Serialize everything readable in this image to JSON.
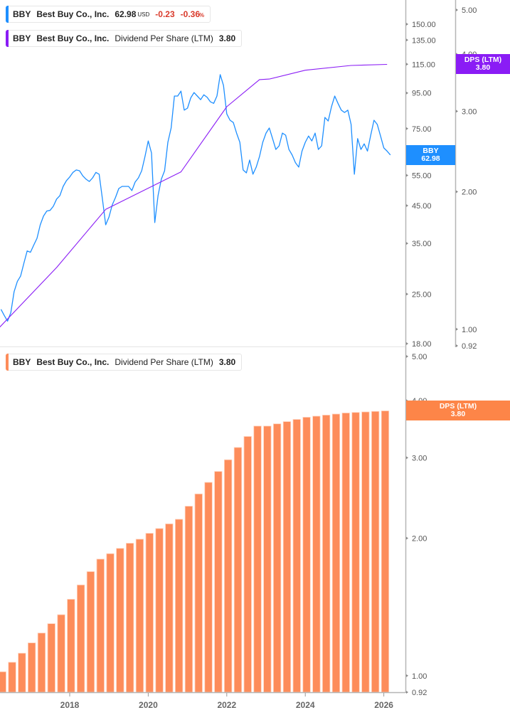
{
  "legends": {
    "price": {
      "ticker": "BBY",
      "company": "Best Buy Co., Inc.",
      "price": "62.98",
      "currency": "USD",
      "change": "-0.23",
      "change_pct": "-0.36",
      "pct_sign": "%",
      "color": "#1e8fff"
    },
    "dps_top": {
      "ticker": "BBY",
      "company": "Best Buy Co., Inc.",
      "metric": "Dividend Per Share (LTM)",
      "value": "3.80",
      "color": "#8a1cf5"
    },
    "dps_bottom": {
      "ticker": "BBY",
      "company": "Best Buy Co., Inc.",
      "metric": "Dividend Per Share (LTM)",
      "value": "3.80",
      "color": "#fd8c5a"
    }
  },
  "badges": {
    "price": {
      "line1": "BBY",
      "line2": "62.98",
      "color": "#1e8fff"
    },
    "dps_top": {
      "line1": "DPS (LTM)",
      "line2": "3.80",
      "color": "#8a1cf5"
    },
    "dps_bottom": {
      "line1": "DPS (LTM)",
      "line2": "3.80",
      "color": "#fd8548"
    }
  },
  "chart_data": [
    {
      "type": "line",
      "panel": "top",
      "scale": "log",
      "price_axis": {
        "ticks": [
          "150.00",
          "135.00",
          "115.00",
          "95.00",
          "75.00",
          "55.00",
          "45.00",
          "35.00",
          "25.00",
          "18.00"
        ],
        "range": [
          18,
          150
        ]
      },
      "dps_axis": {
        "ticks": [
          "5.00",
          "4.00",
          "3.00",
          "2.00",
          "1.00",
          "0.92"
        ],
        "range": [
          0.92,
          5.0
        ]
      },
      "series": [
        {
          "name": "BBY",
          "axis": "price",
          "color": "#1e8fff",
          "x": [
            "2016-04",
            "2016-05",
            "2016-06",
            "2016-07",
            "2016-08",
            "2016-09",
            "2016-10",
            "2016-11",
            "2016-12",
            "2017-01",
            "2017-02",
            "2017-03",
            "2017-04",
            "2017-05",
            "2017-06",
            "2017-07",
            "2017-08",
            "2017-09",
            "2017-10",
            "2017-11",
            "2017-12",
            "2018-01",
            "2018-02",
            "2018-03",
            "2018-04",
            "2018-05",
            "2018-06",
            "2018-07",
            "2018-08",
            "2018-09",
            "2018-10",
            "2018-11",
            "2018-12",
            "2019-01",
            "2019-02",
            "2019-03",
            "2019-04",
            "2019-05",
            "2019-06",
            "2019-07",
            "2019-08",
            "2019-09",
            "2019-10",
            "2019-11",
            "2019-12",
            "2020-01",
            "2020-02",
            "2020-03",
            "2020-04",
            "2020-05",
            "2020-06",
            "2020-07",
            "2020-08",
            "2020-09",
            "2020-10",
            "2020-11",
            "2020-12",
            "2021-01",
            "2021-02",
            "2021-03",
            "2021-04",
            "2021-05",
            "2021-06",
            "2021-07",
            "2021-08",
            "2021-09",
            "2021-10",
            "2021-11",
            "2021-12",
            "2022-01",
            "2022-02",
            "2022-03",
            "2022-04",
            "2022-05",
            "2022-06",
            "2022-07",
            "2022-08",
            "2022-09",
            "2022-10",
            "2022-11",
            "2022-12",
            "2023-01",
            "2023-02",
            "2023-03",
            "2023-04",
            "2023-05",
            "2023-06",
            "2023-07",
            "2023-08",
            "2023-09",
            "2023-10",
            "2023-11",
            "2023-12",
            "2024-01",
            "2024-02",
            "2024-03",
            "2024-04",
            "2024-05",
            "2024-06",
            "2024-07",
            "2024-08",
            "2024-09",
            "2024-10",
            "2024-11",
            "2024-12",
            "2025-01",
            "2025-02",
            "2025-03",
            "2025-04",
            "2025-05",
            "2025-06",
            "2025-07",
            "2025-08",
            "2025-09",
            "2025-10",
            "2025-11",
            "2025-12",
            "2026-01",
            "2026-02",
            "2026-03"
          ],
          "y": [
            22.6,
            21.7,
            20.9,
            22.1,
            25.4,
            27.2,
            28.2,
            30.7,
            33.3,
            33.0,
            34.6,
            36.2,
            39.6,
            42.0,
            43.4,
            43.6,
            44.8,
            47.0,
            48.1,
            51.1,
            53.1,
            54.4,
            56.1,
            57.0,
            56.7,
            54.8,
            53.6,
            52.8,
            54.1,
            56.1,
            55.4,
            47.0,
            39.6,
            41.7,
            45.2,
            47.5,
            50.4,
            51.1,
            51.1,
            51.1,
            49.7,
            52.6,
            54.1,
            56.7,
            62.3,
            69.1,
            63.8,
            40.2,
            48.1,
            53.6,
            56.7,
            68.5,
            75.3,
            93.1,
            93.1,
            96.2,
            84.8,
            85.9,
            92.0,
            95.3,
            93.1,
            90.9,
            93.9,
            92.3,
            89.6,
            88.7,
            93.1,
            107.3,
            99.9,
            82.7,
            79.3,
            78.1,
            72.8,
            68.5,
            57.0,
            55.9,
            60.9,
            55.4,
            58.1,
            62.3,
            68.5,
            72.8,
            75.3,
            70.2,
            65.3,
            66.9,
            72.8,
            71.8,
            65.3,
            62.9,
            59.8,
            58.1,
            64.6,
            68.5,
            71.4,
            69.1,
            72.8,
            65.3,
            66.9,
            80.8,
            78.9,
            86.7,
            93.1,
            88.7,
            84.8,
            83.5,
            84.8,
            77.1,
            55.4,
            70.2,
            65.3,
            67.8,
            64.6,
            71.8,
            79.3,
            77.1,
            71.4,
            66.0,
            64.6,
            62.98
          ]
        },
        {
          "name": "DPS (LTM)",
          "axis": "dps",
          "color": "#8a1cf5",
          "x": [
            "2016-03",
            "2017-09",
            "2018-12",
            "2020-11",
            "2022-01",
            "2022-11",
            "2023-02",
            "2024-01",
            "2025-03",
            "2026-02"
          ],
          "y": [
            1.0,
            1.365,
            1.83,
            2.21,
            3.07,
            3.52,
            3.53,
            3.69,
            3.78,
            3.8
          ]
        }
      ]
    },
    {
      "type": "bar",
      "panel": "bottom",
      "scale": "log",
      "y_axis": {
        "ticks": [
          "5.00",
          "4.00",
          "3.00",
          "2.00",
          "1.00",
          "0.92"
        ],
        "range": [
          0.92,
          5.0
        ]
      },
      "x_ticks": [
        "2018",
        "2020",
        "2022",
        "2024",
        "2026"
      ],
      "series": [
        {
          "name": "DPS (LTM)",
          "color": "#fd8c5a",
          "x": [
            "2016-05",
            "2016-08",
            "2016-11",
            "2017-02",
            "2017-05",
            "2017-08",
            "2017-11",
            "2018-02",
            "2018-05",
            "2018-08",
            "2018-11",
            "2019-02",
            "2019-05",
            "2019-08",
            "2019-11",
            "2020-02",
            "2020-05",
            "2020-08",
            "2020-11",
            "2021-02",
            "2021-05",
            "2021-08",
            "2021-11",
            "2022-02",
            "2022-05",
            "2022-08",
            "2022-11",
            "2023-02",
            "2023-05",
            "2023-08",
            "2023-11",
            "2024-02",
            "2024-05",
            "2024-08",
            "2024-11",
            "2025-02",
            "2025-05",
            "2025-08",
            "2025-11",
            "2026-02"
          ],
          "y": [
            1.02,
            1.07,
            1.12,
            1.18,
            1.24,
            1.3,
            1.36,
            1.47,
            1.58,
            1.69,
            1.8,
            1.85,
            1.9,
            1.95,
            1.99,
            2.05,
            2.1,
            2.15,
            2.2,
            2.35,
            2.5,
            2.65,
            2.8,
            2.97,
            3.16,
            3.34,
            3.52,
            3.52,
            3.56,
            3.6,
            3.64,
            3.68,
            3.7,
            3.72,
            3.74,
            3.76,
            3.77,
            3.78,
            3.79,
            3.8
          ]
        }
      ]
    }
  ]
}
